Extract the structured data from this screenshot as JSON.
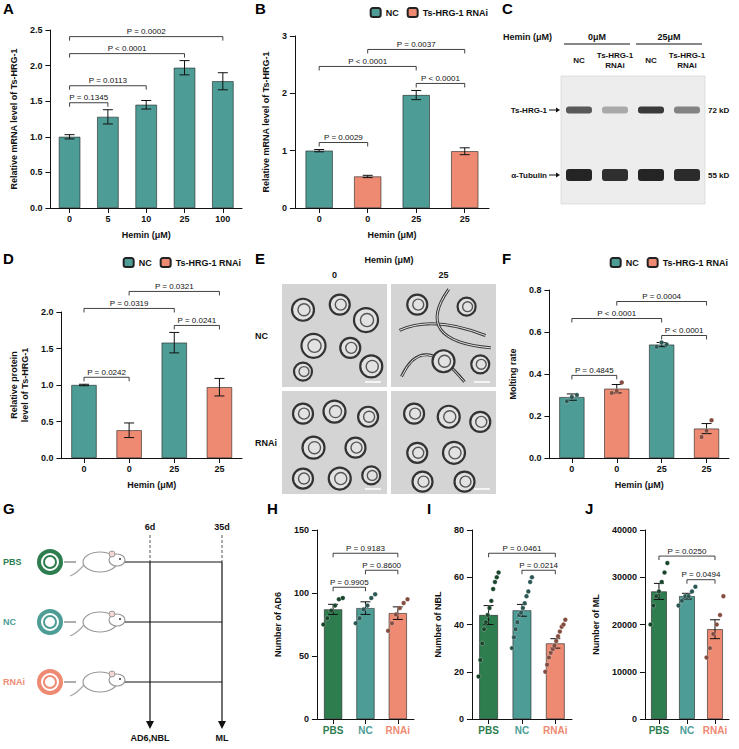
{
  "chart_data": [
    {
      "panel": "A",
      "type": "bar",
      "x_label": "Hemin (μM)",
      "y_label": "Relative mRNA level of Ts-HRG-1",
      "categories": [
        "0",
        "5",
        "10",
        "25",
        "100"
      ],
      "values": [
        1.0,
        1.28,
        1.45,
        1.97,
        1.78
      ],
      "errors": [
        0.03,
        0.1,
        0.06,
        0.1,
        0.12
      ],
      "color": "#4d9d96",
      "ylim": [
        0,
        2.5
      ],
      "yticks": [
        {
          "value": 0,
          "label": "0.0"
        },
        0.5,
        {
          "value": 1,
          "label": "1.0"
        },
        1.5,
        {
          "value": 2,
          "label": "2.0"
        },
        2.5
      ],
      "grid": false,
      "comparisons": [
        {
          "between": [
            0,
            1
          ],
          "label": "P = 0.1345"
        },
        {
          "between": [
            0,
            2
          ],
          "label": "P = 0.0113"
        },
        {
          "between": [
            0,
            3
          ],
          "label": "P < 0.0001"
        },
        {
          "between": [
            0,
            4
          ],
          "label": "P = 0.0002"
        }
      ]
    },
    {
      "panel": "B",
      "type": "bar",
      "x_label": "Hemin (μM)",
      "y_label": "Relative mRNA level of Ts-HRG-1",
      "categories": [
        "0",
        "0",
        "25",
        "25"
      ],
      "series": [
        {
          "name": "NC",
          "color": "#4d9d96",
          "values": [
            1.0,
            null,
            1.97,
            null
          ],
          "errors": [
            0.02,
            null,
            0.08,
            null
          ]
        },
        {
          "name": "Ts-HRG-1 RNAi",
          "color": "#ee8a72",
          "values": [
            null,
            0.55,
            null,
            0.99
          ],
          "errors": [
            null,
            0.02,
            null,
            0.06
          ]
        }
      ],
      "ylim": [
        0,
        3
      ],
      "yticks": [
        0,
        1,
        2,
        3
      ],
      "grid": false,
      "legend": "top right",
      "comparisons": [
        {
          "between": [
            0,
            1
          ],
          "label": "P = 0.0029"
        },
        {
          "between": [
            2,
            3
          ],
          "label": "P < 0.0001"
        },
        {
          "between": [
            0,
            2
          ],
          "label": "P < 0.0001"
        },
        {
          "between": [
            1,
            3
          ],
          "label": "P = 0.0037"
        }
      ]
    },
    {
      "panel": "D",
      "type": "bar",
      "x_label": "Hemin (μM)",
      "y_label": "Relative protein level of Ts-HRG-1",
      "categories": [
        "0",
        "0",
        "25",
        "25"
      ],
      "series": [
        {
          "name": "NC",
          "color": "#4d9d96",
          "values": [
            1.0,
            null,
            1.58,
            null
          ],
          "errors": [
            0.01,
            null,
            0.14,
            null
          ]
        },
        {
          "name": "Ts-HRG-1 RNAi",
          "color": "#ee8a72",
          "values": [
            null,
            0.38,
            null,
            0.97
          ],
          "errors": [
            null,
            0.1,
            null,
            0.12
          ]
        }
      ],
      "ylim": [
        0,
        2
      ],
      "yticks": [
        {
          "value": 0,
          "label": "0.0"
        },
        0.5,
        {
          "value": 1,
          "label": "1.0"
        },
        1.5,
        {
          "value": 2,
          "label": "2.0"
        }
      ],
      "grid": false,
      "legend": "top right",
      "comparisons": [
        {
          "between": [
            0,
            1
          ],
          "label": "P = 0.0242"
        },
        {
          "between": [
            2,
            3
          ],
          "label": "P = 0.0241"
        },
        {
          "between": [
            0,
            2
          ],
          "label": "P = 0.0319"
        },
        {
          "between": [
            1,
            3
          ],
          "label": "P = 0.0321"
        }
      ]
    },
    {
      "panel": "F",
      "type": "bar",
      "x_label": "Hemin (μM)",
      "y_label": "Molting rate",
      "categories": [
        "0",
        "0",
        "25",
        "25"
      ],
      "series": [
        {
          "name": "NC",
          "color": "#4d9d96",
          "values": [
            0.29,
            null,
            0.54,
            null
          ],
          "errors": [
            0.015,
            null,
            0.01,
            null
          ],
          "points": [
            [
              0.27,
              0.29,
              0.3
            ],
            null,
            [
              0.53,
              0.55,
              0.54
            ],
            null
          ]
        },
        {
          "name": "Ts-HRG-1 RNAi",
          "color": "#ee8a72",
          "values": [
            null,
            0.33,
            null,
            0.14
          ],
          "errors": [
            null,
            0.02,
            null,
            0.024
          ],
          "points": [
            null,
            [
              0.31,
              0.32,
              0.36
            ],
            null,
            [
              0.1,
              0.13,
              0.18
            ]
          ]
        }
      ],
      "ylim": [
        0,
        0.8
      ],
      "yticks": [
        {
          "value": 0,
          "label": "0.0"
        },
        0.2,
        0.4,
        0.6,
        0.8
      ],
      "grid": false,
      "legend": "top right",
      "comparisons": [
        {
          "between": [
            0,
            1
          ],
          "label": "P = 0.4845"
        },
        {
          "between": [
            2,
            3
          ],
          "label": "P < 0.0001"
        },
        {
          "between": [
            0,
            2
          ],
          "label": "P < 0.0001"
        },
        {
          "between": [
            1,
            3
          ],
          "label": "P = 0.0004"
        }
      ]
    },
    {
      "panel": "H",
      "type": "bar",
      "y_label": "Number of AD6",
      "categories": [
        "PBS",
        "NC",
        "RNAi"
      ],
      "values": [
        87,
        88,
        84
      ],
      "errors": [
        4,
        5,
        5
      ],
      "colors": [
        "#2e7d4f",
        "#4d9d96",
        "#ee8a72"
      ],
      "points": [
        [
          75,
          80,
          86,
          90,
          95,
          96
        ],
        [
          76,
          80,
          87,
          90,
          96,
          99
        ],
        [
          70,
          76,
          83,
          88,
          92,
          95
        ]
      ],
      "ylim": [
        0,
        150
      ],
      "yticks": [
        0,
        50,
        100,
        150
      ],
      "grid": false,
      "comparisons": [
        {
          "between": [
            0,
            1
          ],
          "label": "P = 0.9905"
        },
        {
          "between": [
            1,
            2
          ],
          "label": "P = 0.8600"
        },
        {
          "between": [
            0,
            2
          ],
          "label": "P = 0.9183"
        }
      ]
    },
    {
      "panel": "I",
      "type": "bar",
      "y_label": "Number of NBL",
      "categories": [
        "PBS",
        "NC",
        "RNAi"
      ],
      "values": [
        44,
        46,
        32
      ],
      "errors": [
        4,
        2.5,
        2
      ],
      "colors": [
        "#2e7d4f",
        "#4d9d96",
        "#ee8a72"
      ],
      "points": [
        [
          18,
          25,
          32,
          38,
          41,
          44,
          47,
          50,
          55,
          58,
          60,
          62
        ],
        [
          30,
          35,
          38,
          41,
          44,
          45,
          47,
          49,
          52,
          54,
          58,
          60
        ],
        [
          20,
          23,
          26,
          28,
          30,
          31,
          33,
          35,
          37,
          39,
          40,
          42
        ]
      ],
      "ylim": [
        0,
        80
      ],
      "yticks": [
        0,
        20,
        40,
        60,
        80
      ],
      "grid": false,
      "comparisons": [
        {
          "between": [
            1,
            2
          ],
          "label": "P = 0.0214"
        },
        {
          "between": [
            0,
            2
          ],
          "label": "P = 0.0461"
        }
      ]
    },
    {
      "panel": "J",
      "type": "bar",
      "y_label": "Number of ML",
      "categories": [
        "PBS",
        "NC",
        "RNAi"
      ],
      "values": [
        27000,
        26000,
        19000
      ],
      "errors": [
        1700,
        600,
        2000
      ],
      "colors": [
        "#2e7d4f",
        "#4d9d96",
        "#ee8a72"
      ],
      "points": [
        [
          20000,
          24000,
          26000,
          27000,
          29000,
          31000,
          33000
        ],
        [
          24000,
          25000,
          26000,
          26000,
          27000,
          28000
        ],
        [
          13000,
          15000,
          18000,
          20000,
          22000,
          26000
        ]
      ],
      "ylim": [
        0,
        40000
      ],
      "yticks": [
        0,
        10000,
        20000,
        30000,
        40000
      ],
      "grid": false,
      "comparisons": [
        {
          "between": [
            1,
            2
          ],
          "label": "P = 0.0494"
        },
        {
          "between": [
            0,
            2
          ],
          "label": "P = 0.0250"
        }
      ]
    }
  ],
  "blot": {
    "panel": "C",
    "condition_label": "Hemin (μM)",
    "groups": [
      {
        "label": "0μM",
        "lanes": [
          "NC",
          "Ts-HRG-1 RNAi"
        ]
      },
      {
        "label": "25μM",
        "lanes": [
          "NC",
          "Ts-HRG-1 RNAi"
        ]
      }
    ],
    "bands": [
      {
        "label": "Ts-HRG-1",
        "size": "72 kD"
      },
      {
        "label": "α-Tubulin",
        "size": "55 kD"
      }
    ]
  },
  "micrographs": {
    "panel": "E",
    "condition_label": "Hemin (μM)",
    "columns": [
      "0",
      "25"
    ],
    "rows": [
      "NC",
      "RNAi"
    ]
  },
  "schematic": {
    "panel": "G",
    "groups": [
      {
        "label": "PBS",
        "color": "#2e7d4f"
      },
      {
        "label": "NC",
        "color": "#4d9d96"
      },
      {
        "label": "RNAi",
        "color": "#ee8a72"
      }
    ],
    "timepoints": [
      "6d",
      "35d"
    ],
    "readouts": [
      "AD6,NBL",
      "ML"
    ]
  }
}
